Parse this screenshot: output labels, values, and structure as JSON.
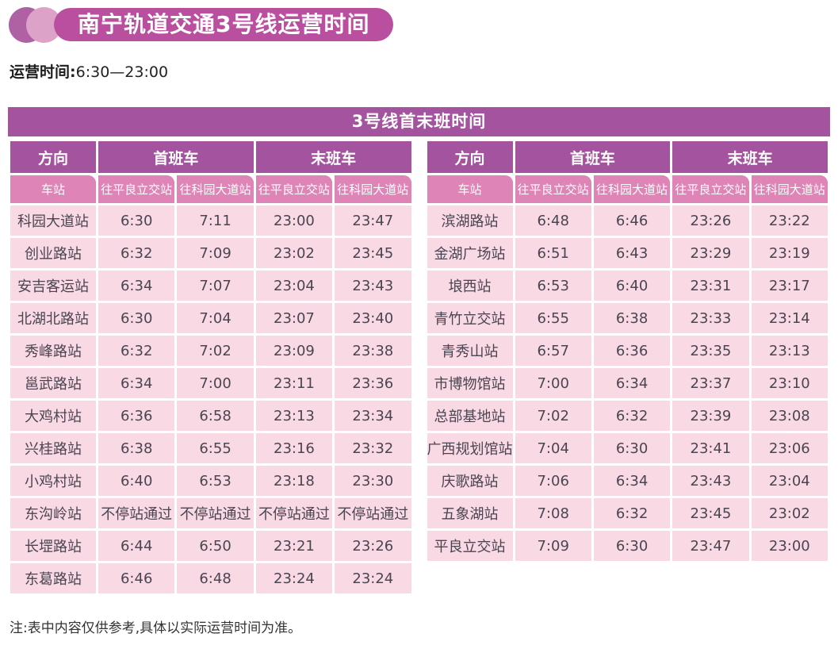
{
  "header": {
    "title": "南宁轨道交通3号线运营时间",
    "operating_label": "运营时间:",
    "operating_hours": "6:30—23:00"
  },
  "section": {
    "banner": "3号线首末班时间"
  },
  "columns": {
    "direction": "方向",
    "first_train": "首班车",
    "last_train": "末班车",
    "station": "车站",
    "to_pingliang": "往平良立交站",
    "to_keyuan": "往科园大道站"
  },
  "left_table": {
    "rows": [
      [
        "科园大道站",
        "6:30",
        "7:11",
        "23:00",
        "23:47"
      ],
      [
        "创业路站",
        "6:32",
        "7:09",
        "23:02",
        "23:45"
      ],
      [
        "安吉客运站",
        "6:34",
        "7:07",
        "23:04",
        "23:43"
      ],
      [
        "北湖北路站",
        "6:30",
        "7:04",
        "23:07",
        "23:40"
      ],
      [
        "秀峰路站",
        "6:32",
        "7:02",
        "23:09",
        "23:38"
      ],
      [
        "邕武路站",
        "6:34",
        "7:00",
        "23:11",
        "23:36"
      ],
      [
        "大鸡村站",
        "6:36",
        "6:58",
        "23:13",
        "23:34"
      ],
      [
        "兴桂路站",
        "6:38",
        "6:55",
        "23:16",
        "23:32"
      ],
      [
        "小鸡村站",
        "6:40",
        "6:53",
        "23:18",
        "23:30"
      ],
      [
        "东沟岭站",
        "不停站通过",
        "不停站通过",
        "不停站通过",
        "不停站通过"
      ],
      [
        "长堽路站",
        "6:44",
        "6:50",
        "23:21",
        "23:26"
      ],
      [
        "东葛路站",
        "6:46",
        "6:48",
        "23:24",
        "23:24"
      ]
    ]
  },
  "right_table": {
    "rows": [
      [
        "滨湖路站",
        "6:48",
        "6:46",
        "23:26",
        "23:22"
      ],
      [
        "金湖广场站",
        "6:51",
        "6:43",
        "23:29",
        "23:19"
      ],
      [
        "埌西站",
        "6:53",
        "6:40",
        "23:31",
        "23:17"
      ],
      [
        "青竹立交站",
        "6:55",
        "6:38",
        "23:33",
        "23:14"
      ],
      [
        "青秀山站",
        "6:57",
        "6:36",
        "23:35",
        "23:13"
      ],
      [
        "市博物馆站",
        "7:00",
        "6:34",
        "23:37",
        "23:10"
      ],
      [
        "总部基地站",
        "7:02",
        "6:32",
        "23:39",
        "23:08"
      ],
      [
        "广西规划馆站",
        "7:04",
        "6:30",
        "23:41",
        "23:06"
      ],
      [
        "庆歌路站",
        "7:06",
        "6:34",
        "23:43",
        "23:04"
      ],
      [
        "五象湖站",
        "7:08",
        "6:32",
        "23:45",
        "23:02"
      ],
      [
        "平良立交站",
        "7:09",
        "6:30",
        "23:47",
        "23:00"
      ]
    ]
  },
  "footnote": "注:表中内容仅供参考,具体以实际运营时间为准。",
  "colors": {
    "title_pill": "#ba4fa0",
    "circle_left": "#ae62a3",
    "circle_right": "#dda2c8",
    "banner": "#a4549e",
    "header_cell": "#a4549e",
    "subheader": "#de84b6",
    "subheader_tab": "#c765a8",
    "row_bg": "#f8d9e4",
    "text_dark": "#4a4550"
  }
}
